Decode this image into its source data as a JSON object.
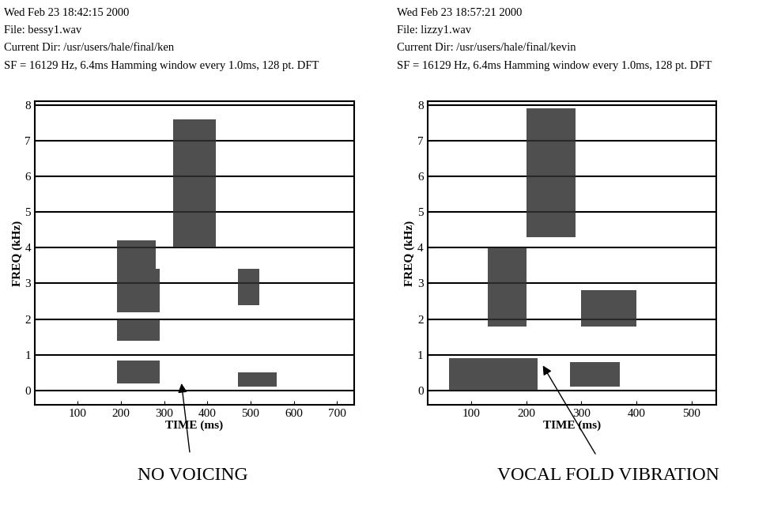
{
  "chart_data": [
    {
      "type": "spectrogram",
      "header": [
        "Wed Feb 23 18:42:15 2000",
        "File: bessy1.wav",
        "Current Dir: /usr/users/hale/final/ken",
        "SF = 16129 Hz, 6.4ms Hamming window every 1.0ms, 128 pt. DFT"
      ],
      "x_label": "TIME (ms)",
      "y_label": "FREQ (kHz)",
      "xlim": [
        0,
        740
      ],
      "xticks": [
        100,
        200,
        300,
        400,
        500,
        600,
        700
      ],
      "ylim": [
        -0.4,
        8.1
      ],
      "yticks": [
        0,
        1,
        2,
        3,
        4,
        5,
        6,
        7,
        8
      ],
      "grid": true,
      "color": "#303030",
      "regions": [
        {
          "t": [
            190,
            290
          ],
          "f": [
            0.2,
            0.85
          ]
        },
        {
          "t": [
            190,
            290
          ],
          "f": [
            1.4,
            2.0
          ]
        },
        {
          "t": [
            190,
            290
          ],
          "f": [
            2.2,
            3.4
          ]
        },
        {
          "t": [
            190,
            280
          ],
          "f": [
            3.4,
            4.2
          ]
        },
        {
          "t": [
            320,
            420
          ],
          "f": [
            4.0,
            7.6
          ]
        },
        {
          "t": [
            470,
            520
          ],
          "f": [
            2.4,
            3.4
          ]
        },
        {
          "t": [
            470,
            560
          ],
          "f": [
            0.1,
            0.5
          ]
        }
      ],
      "annotations": [
        {
          "text": "NO VOICING",
          "x": 340,
          "y": 0.2
        }
      ]
    },
    {
      "type": "spectrogram",
      "header": [
        "Wed Feb 23 18:57:21 2000",
        "File: lizzy1.wav",
        "Current Dir: /usr/users/hale/final/kevin",
        "SF = 16129 Hz, 6.4ms Hamming window every 1.0ms, 128 pt. DFT"
      ],
      "x_label": "TIME (ms)",
      "y_label": "FREQ (kHz)",
      "xlim": [
        20,
        545
      ],
      "xticks": [
        100,
        200,
        300,
        400,
        500
      ],
      "ylim": [
        -0.4,
        8.1
      ],
      "yticks": [
        0,
        1,
        2,
        3,
        4,
        5,
        6,
        7,
        8
      ],
      "grid": true,
      "color": "#303030",
      "regions": [
        {
          "t": [
            60,
            220
          ],
          "f": [
            0.0,
            0.9
          ]
        },
        {
          "t": [
            130,
            200
          ],
          "f": [
            1.8,
            4.0
          ]
        },
        {
          "t": [
            200,
            290
          ],
          "f": [
            4.3,
            7.9
          ]
        },
        {
          "t": [
            280,
            370
          ],
          "f": [
            0.1,
            0.8
          ]
        },
        {
          "t": [
            300,
            400
          ],
          "f": [
            1.8,
            2.8
          ]
        }
      ],
      "annotations": [
        {
          "text": "VOCAL FOLD VIBRATION",
          "x": 230,
          "y": 0.7
        }
      ]
    }
  ]
}
